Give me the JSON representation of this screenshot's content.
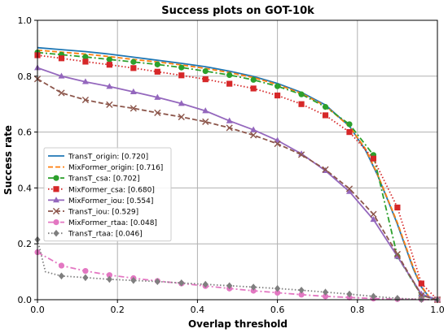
{
  "chart_data": {
    "type": "line",
    "title": "Success plots on GOT-10k",
    "xlabel": "Overlap threshold",
    "ylabel": "Success rate",
    "xlim": [
      0,
      1
    ],
    "ylim": [
      0,
      1
    ],
    "xticks": [
      "0.0",
      "0.2",
      "0.4",
      "0.6",
      "0.8",
      "1.0"
    ],
    "yticks": [
      "0.0",
      "0.2",
      "0.4",
      "0.6",
      "0.8",
      "1.0"
    ],
    "grid": true,
    "legend_position": "center-left",
    "series": [
      {
        "name": "TransT_origin: [0.720]",
        "color": "#1f77b4",
        "dash": "solid",
        "marker": "none",
        "x": [
          0,
          0.06,
          0.12,
          0.18,
          0.24,
          0.3,
          0.36,
          0.42,
          0.48,
          0.54,
          0.6,
          0.66,
          0.72,
          0.78,
          0.82,
          0.85,
          0.88,
          0.9,
          0.92,
          0.94,
          0.96,
          0.98,
          1.0
        ],
        "y": [
          0.902,
          0.895,
          0.888,
          0.879,
          0.868,
          0.857,
          0.846,
          0.834,
          0.818,
          0.799,
          0.774,
          0.742,
          0.697,
          0.621,
          0.536,
          0.447,
          0.342,
          0.27,
          0.19,
          0.11,
          0.045,
          0.008,
          0.0
        ]
      },
      {
        "name": "MixFormer_origin: [0.716]",
        "color": "#ff7f0e",
        "dash": "dashed",
        "marker": "none",
        "x": [
          0,
          0.06,
          0.12,
          0.18,
          0.24,
          0.3,
          0.36,
          0.42,
          0.48,
          0.54,
          0.6,
          0.66,
          0.72,
          0.78,
          0.82,
          0.85,
          0.88,
          0.9,
          0.92,
          0.94,
          0.96,
          0.98,
          1.0
        ],
        "y": [
          0.893,
          0.886,
          0.879,
          0.87,
          0.86,
          0.851,
          0.84,
          0.828,
          0.813,
          0.795,
          0.77,
          0.738,
          0.694,
          0.62,
          0.54,
          0.45,
          0.345,
          0.275,
          0.195,
          0.115,
          0.048,
          0.009,
          0.0
        ]
      },
      {
        "name": "TransT_csa: [0.702]",
        "color": "#2ca02c",
        "dash": "dashdot",
        "marker": "circle",
        "x": [
          0,
          0.06,
          0.12,
          0.18,
          0.24,
          0.3,
          0.36,
          0.42,
          0.48,
          0.54,
          0.6,
          0.66,
          0.72,
          0.78,
          0.84,
          0.9,
          0.96,
          1.0
        ],
        "y": [
          0.885,
          0.877,
          0.869,
          0.86,
          0.851,
          0.842,
          0.831,
          0.818,
          0.804,
          0.787,
          0.764,
          0.735,
          0.69,
          0.628,
          0.518,
          0.155,
          0.015,
          0.0
        ]
      },
      {
        "name": "MixFormer_csa: [0.680]",
        "color": "#d62728",
        "dash": "dotted",
        "marker": "square",
        "x": [
          0,
          0.06,
          0.12,
          0.18,
          0.24,
          0.3,
          0.36,
          0.42,
          0.48,
          0.54,
          0.6,
          0.66,
          0.72,
          0.78,
          0.84,
          0.9,
          0.96,
          1.0
        ],
        "y": [
          0.875,
          0.864,
          0.852,
          0.841,
          0.829,
          0.816,
          0.803,
          0.789,
          0.773,
          0.756,
          0.731,
          0.7,
          0.66,
          0.6,
          0.505,
          0.33,
          0.058,
          0.0
        ]
      },
      {
        "name": "MixFormer_iou: [0.554]",
        "color": "#9467bd",
        "dash": "solid",
        "marker": "triangle",
        "x": [
          0,
          0.06,
          0.12,
          0.18,
          0.24,
          0.3,
          0.36,
          0.42,
          0.48,
          0.54,
          0.6,
          0.66,
          0.72,
          0.78,
          0.84,
          0.9,
          0.96,
          1.0
        ],
        "y": [
          0.83,
          0.8,
          0.78,
          0.763,
          0.744,
          0.724,
          0.702,
          0.676,
          0.64,
          0.608,
          0.57,
          0.522,
          0.462,
          0.387,
          0.287,
          0.155,
          0.02,
          0.0
        ]
      },
      {
        "name": "TransT_iou: [0.529]",
        "color": "#8c564b",
        "dash": "dashed",
        "marker": "x",
        "x": [
          0,
          0.06,
          0.12,
          0.18,
          0.24,
          0.3,
          0.36,
          0.42,
          0.48,
          0.54,
          0.6,
          0.66,
          0.72,
          0.78,
          0.84,
          0.9,
          0.96,
          1.0
        ],
        "y": [
          0.79,
          0.74,
          0.715,
          0.698,
          0.685,
          0.669,
          0.654,
          0.637,
          0.615,
          0.589,
          0.558,
          0.519,
          0.466,
          0.397,
          0.306,
          0.163,
          0.015,
          0.0
        ]
      },
      {
        "name": "MixFormer_rtaa: [0.048]",
        "color": "#e377c2",
        "dash": "dashdot",
        "marker": "circle",
        "x": [
          0,
          0.06,
          0.12,
          0.18,
          0.24,
          0.3,
          0.36,
          0.42,
          0.48,
          0.54,
          0.6,
          0.66,
          0.72,
          0.78,
          0.84,
          0.9,
          0.96,
          1.0
        ],
        "y": [
          0.17,
          0.122,
          0.103,
          0.088,
          0.077,
          0.067,
          0.058,
          0.049,
          0.04,
          0.032,
          0.025,
          0.018,
          0.012,
          0.008,
          0.004,
          0.002,
          0.001,
          0.0
        ]
      },
      {
        "name": "TransT_rtaa: [0.046]",
        "color": "#7f7f7f",
        "dash": "dotted",
        "marker": "diamond",
        "x": [
          0,
          0.02,
          0.06,
          0.12,
          0.18,
          0.24,
          0.3,
          0.36,
          0.42,
          0.48,
          0.54,
          0.6,
          0.66,
          0.72,
          0.78,
          0.84,
          0.9,
          0.96,
          1.0
        ],
        "y": [
          0.215,
          0.1,
          0.085,
          0.079,
          0.073,
          0.069,
          0.065,
          0.06,
          0.055,
          0.05,
          0.045,
          0.04,
          0.034,
          0.027,
          0.02,
          0.012,
          0.005,
          0.001,
          0.0
        ]
      }
    ]
  }
}
